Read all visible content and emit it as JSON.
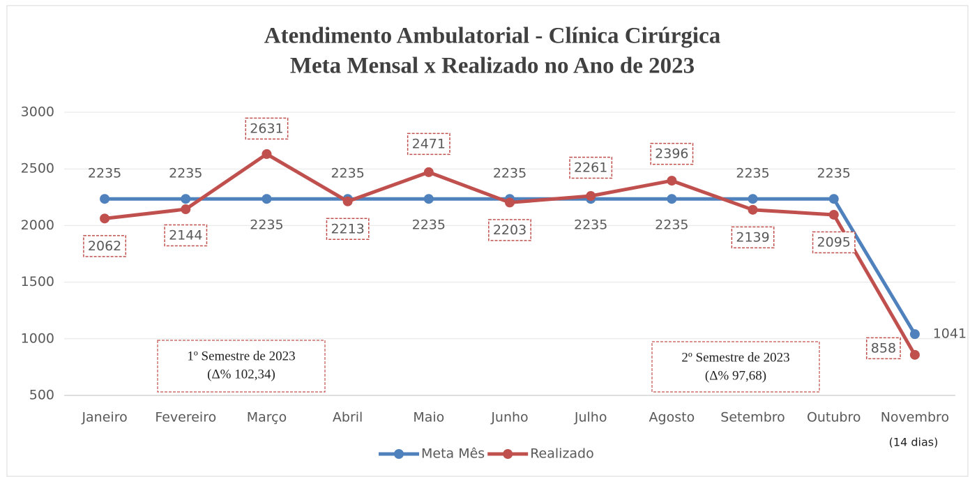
{
  "chart_data": {
    "type": "line",
    "title": "Atendimento Ambulatorial - Clínica Cirúrgica",
    "subtitle": "Meta Mensal x Realizado no Ano de 2023",
    "categories": [
      "Janeiro",
      "Fevereiro",
      "Março",
      "Abril",
      "Maio",
      "Junho",
      "Julho",
      "Agosto",
      "Setembro",
      "Outubro",
      "Novembro"
    ],
    "series": [
      {
        "name": "Meta Mês",
        "color": "#4f81bd",
        "values": [
          2235,
          2235,
          2235,
          2235,
          2235,
          2235,
          2235,
          2235,
          2235,
          2235,
          1041
        ]
      },
      {
        "name": "Realizado",
        "color": "#c0504d",
        "values": [
          2062,
          2144,
          2631,
          2213,
          2471,
          2203,
          2261,
          2396,
          2139,
          2095,
          858
        ]
      }
    ],
    "ylim": [
      500,
      3000
    ],
    "yticks": [
      500,
      1000,
      1500,
      2000,
      2500,
      3000
    ],
    "grid": true,
    "legend": "bottom",
    "annotations": [
      {
        "lines": [
          "1º Semestre de 2023",
          "(Δ% 102,34)"
        ]
      },
      {
        "lines": [
          "2º Semestre de 2023",
          "(Δ% 97,68)"
        ]
      }
    ],
    "note": "(14 dias)"
  }
}
